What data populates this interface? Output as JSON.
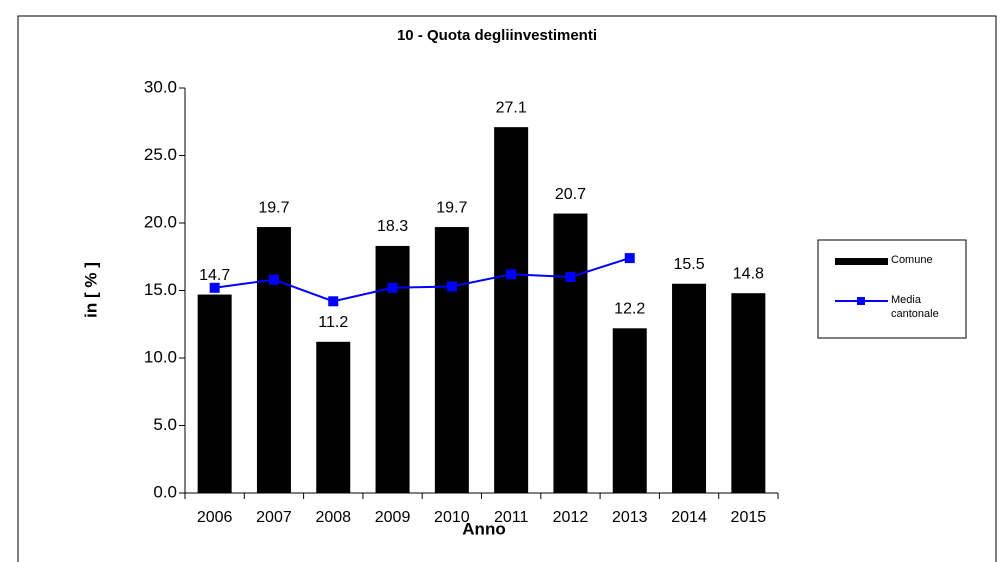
{
  "chart_data": {
    "type": "bar",
    "title": "10 - Quota degliinvestimenti",
    "x_label": "Anno",
    "y_label": "in [ % ]",
    "categories": [
      "2006",
      "2007",
      "2008",
      "2009",
      "2010",
      "2011",
      "2012",
      "2013",
      "2014",
      "2015"
    ],
    "series": [
      {
        "name": "Comune",
        "type": "bar",
        "color": "#000000",
        "values": [
          14.7,
          19.7,
          11.2,
          18.3,
          19.7,
          27.1,
          20.7,
          12.2,
          15.5,
          14.8
        ]
      },
      {
        "name": "Media cantonale",
        "type": "line",
        "color": "#0000ff",
        "values": [
          15.2,
          15.8,
          14.2,
          15.2,
          15.3,
          16.2,
          16.0,
          17.4,
          null,
          null
        ]
      }
    ],
    "ylim": [
      0,
      30
    ],
    "yticks": [
      {
        "value": 0,
        "label": "0.0"
      },
      {
        "value": 5,
        "label": "5.0"
      },
      {
        "value": 10,
        "label": "10.0"
      },
      {
        "value": 15,
        "label": "15.0"
      },
      {
        "value": 20,
        "label": "20.0"
      },
      {
        "value": 25,
        "label": "25.0"
      },
      {
        "value": 30,
        "label": "30.0"
      }
    ],
    "legend": "right"
  }
}
